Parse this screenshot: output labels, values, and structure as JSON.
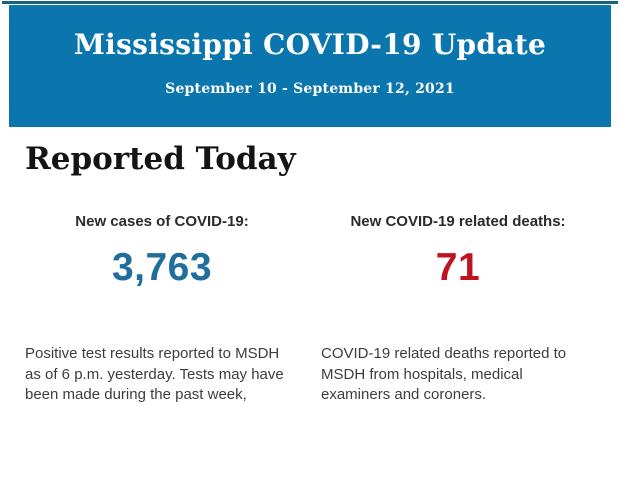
{
  "page": {
    "top_bar_color": "#17627f",
    "header": {
      "bg_color": "#0a76ad",
      "title": "Mississippi COVID-19 Update",
      "subtitle": "September 10 - September 12, 2021"
    },
    "section_title": "Reported Today",
    "stats": [
      {
        "label": "New cases of COVID-19:",
        "value": "3,763",
        "value_color": "#1f6e9e",
        "description": "Positive test results reported to MSDH as of 6 p.m. yesterday. Tests may have been made during the past week,"
      },
      {
        "label": "New COVID-19 related deaths:",
        "value": "71",
        "value_color": "#c0121f",
        "description": "COVID-19 related deaths reported to MSDH from hospitals, medical examiners and coroners."
      }
    ]
  }
}
